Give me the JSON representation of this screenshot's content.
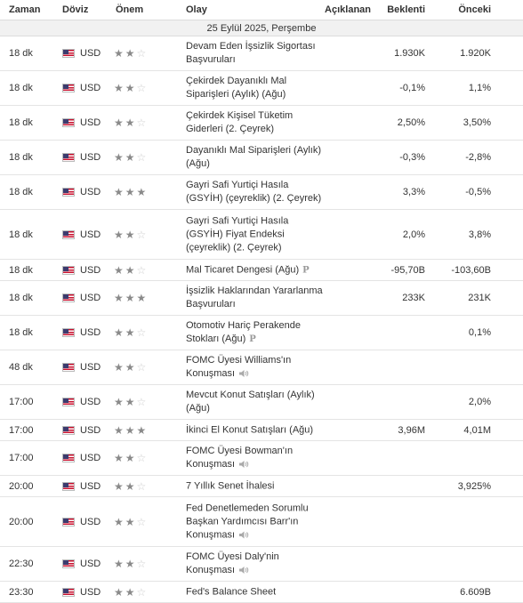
{
  "header": {
    "time": "Zaman",
    "currency": "Döviz",
    "importance": "Önem",
    "event": "Olay",
    "actual": "Açıklanan",
    "forecast": "Beklenti",
    "previous": "Önceki"
  },
  "date_label": "25 Eylül 2025, Perşembe",
  "colors": {
    "star_on": "#8a8a8a",
    "star_off": "#cccccc",
    "date_bg": "#f1f1f1"
  },
  "events": [
    {
      "time": "18 dk",
      "currency": "USD",
      "stars": 2,
      "lines": [
        "Devam Eden İşsizlik Sigortası",
        "Başvuruları"
      ],
      "icon": "",
      "actual": "",
      "forecast": "1.930K",
      "previous": "1.920K"
    },
    {
      "time": "18 dk",
      "currency": "USD",
      "stars": 2,
      "lines": [
        "Çekirdek Dayanıklı Mal",
        "Siparişleri (Aylık) (Ağu)"
      ],
      "icon": "",
      "actual": "",
      "forecast": "-0,1%",
      "previous": "1,1%"
    },
    {
      "time": "18 dk",
      "currency": "USD",
      "stars": 2,
      "lines": [
        "Çekirdek Kişisel Tüketim",
        "Giderleri (2. Çeyrek)"
      ],
      "icon": "",
      "actual": "",
      "forecast": "2,50%",
      "previous": "3,50%"
    },
    {
      "time": "18 dk",
      "currency": "USD",
      "stars": 2,
      "lines": [
        "Dayanıklı Mal Siparişleri (Aylık)",
        "(Ağu)"
      ],
      "icon": "",
      "actual": "",
      "forecast": "-0,3%",
      "previous": "-2,8%"
    },
    {
      "time": "18 dk",
      "currency": "USD",
      "stars": 3,
      "lines": [
        "Gayri Safi Yurtiçi Hasıla",
        "(GSYİH) (çeyreklik) (2. Çeyrek)"
      ],
      "icon": "",
      "actual": "",
      "forecast": "3,3%",
      "previous": "-0,5%"
    },
    {
      "time": "18 dk",
      "currency": "USD",
      "stars": 2,
      "lines": [
        "Gayri Safi Yurtiçi Hasıla",
        "(GSYİH) Fiyat Endeksi",
        "(çeyreklik) (2. Çeyrek)"
      ],
      "icon": "",
      "actual": "",
      "forecast": "2,0%",
      "previous": "3,8%"
    },
    {
      "time": "18 dk",
      "currency": "USD",
      "stars": 2,
      "lines": [
        "Mal Ticaret Dengesi (Ağu)"
      ],
      "icon": "preliminary",
      "actual": "",
      "forecast": "-95,70B",
      "previous": "-103,60B"
    },
    {
      "time": "18 dk",
      "currency": "USD",
      "stars": 3,
      "lines": [
        "İşsizlik Haklarından Yararlanma",
        "Başvuruları"
      ],
      "icon": "",
      "actual": "",
      "forecast": "233K",
      "previous": "231K"
    },
    {
      "time": "18 dk",
      "currency": "USD",
      "stars": 2,
      "lines": [
        "Otomotiv Hariç Perakende",
        "Stokları (Ağu)"
      ],
      "icon": "preliminary",
      "actual": "",
      "forecast": "",
      "previous": "0,1%"
    },
    {
      "time": "48 dk",
      "currency": "USD",
      "stars": 2,
      "lines": [
        "FOMC Üyesi Williams'ın",
        "Konuşması"
      ],
      "icon": "speech",
      "actual": "",
      "forecast": "",
      "previous": ""
    },
    {
      "time": "17:00",
      "currency": "USD",
      "stars": 2,
      "lines": [
        "Mevcut Konut Satışları (Aylık)",
        "(Ağu)"
      ],
      "icon": "",
      "actual": "",
      "forecast": "",
      "previous": "2,0%"
    },
    {
      "time": "17:00",
      "currency": "USD",
      "stars": 3,
      "lines": [
        "İkinci El Konut Satışları (Ağu)"
      ],
      "icon": "",
      "actual": "",
      "forecast": "3,96M",
      "previous": "4,01M"
    },
    {
      "time": "17:00",
      "currency": "USD",
      "stars": 2,
      "lines": [
        "FOMC Üyesi Bowman'ın",
        "Konuşması"
      ],
      "icon": "speech",
      "actual": "",
      "forecast": "",
      "previous": ""
    },
    {
      "time": "20:00",
      "currency": "USD",
      "stars": 2,
      "lines": [
        "7 Yıllık Senet İhalesi"
      ],
      "icon": "",
      "actual": "",
      "forecast": "",
      "previous": "3,925%"
    },
    {
      "time": "20:00",
      "currency": "USD",
      "stars": 2,
      "lines": [
        "Fed Denetlemeden Sorumlu",
        "Başkan Yardımcısı Barr'ın",
        "Konuşması"
      ],
      "icon": "speech",
      "actual": "",
      "forecast": "",
      "previous": ""
    },
    {
      "time": "22:30",
      "currency": "USD",
      "stars": 2,
      "lines": [
        "FOMC Üyesi Daly'nin",
        "Konuşması"
      ],
      "icon": "speech",
      "actual": "",
      "forecast": "",
      "previous": ""
    },
    {
      "time": "23:30",
      "currency": "USD",
      "stars": 2,
      "lines": [
        "Fed's Balance Sheet"
      ],
      "icon": "",
      "actual": "",
      "forecast": "",
      "previous": "6.609B"
    }
  ]
}
